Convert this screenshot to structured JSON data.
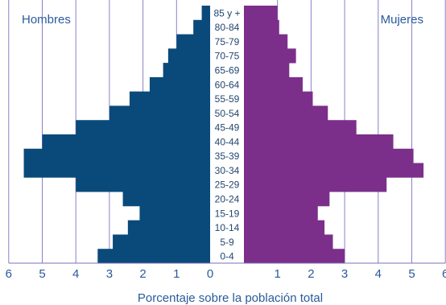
{
  "chart_data": {
    "type": "bar",
    "orientation": "horizontal",
    "style": "population-pyramid",
    "xlabel": "Porcentaje sobre la población total",
    "xlim": [
      -6,
      6
    ],
    "xticks": [
      6,
      5,
      4,
      3,
      2,
      1,
      0,
      1,
      2,
      3,
      4,
      5,
      6
    ],
    "grid": true,
    "categories": [
      "0-4",
      "5-9",
      "10-14",
      "15-19",
      "20-24",
      "25-29",
      "30-34",
      "35-39",
      "40-44",
      "45-49",
      "50-54",
      "55-59",
      "60-64",
      "65-69",
      "70-75",
      "75-79",
      "80-84",
      "85 y +"
    ],
    "series": [
      {
        "name": "Hombres",
        "side": "left",
        "color": "#0a4a7a",
        "values": [
          3.35,
          2.9,
          2.45,
          2.1,
          2.6,
          4.0,
          5.55,
          5.55,
          5.0,
          4.0,
          3.0,
          2.4,
          1.8,
          1.4,
          1.25,
          1.0,
          0.5,
          0.25
        ]
      },
      {
        "name": "Mujeres",
        "side": "right",
        "color": "#7b2f8a",
        "values": [
          3.0,
          2.65,
          2.4,
          2.2,
          2.55,
          4.25,
          5.35,
          5.05,
          4.45,
          3.35,
          2.5,
          2.05,
          1.75,
          1.35,
          1.55,
          1.3,
          1.05,
          1.0
        ]
      }
    ]
  }
}
